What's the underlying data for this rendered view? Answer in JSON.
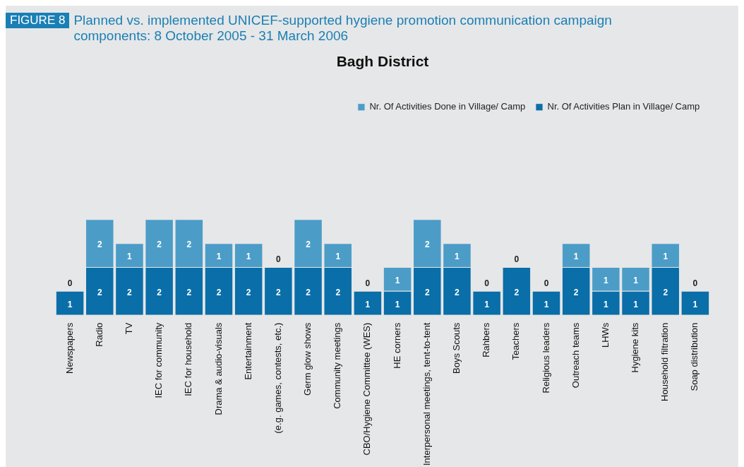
{
  "chart_data": {
    "type": "bar",
    "title": "Bagh District",
    "stacked": true,
    "data_labels": true,
    "legend": "top right",
    "annotations": [
      "FIGURE 8",
      "Planned vs. implemented UNICEF-supported hygiene promotion communication campaign components: 8 October 2005 - 31 March 2006"
    ],
    "categories": [
      "Newspapers",
      "Radio",
      "TV",
      "IEC for community",
      "IEC for household",
      "Drama & audio-visuals",
      "Entertainment",
      "(e.g. games, contests, etc.)",
      "Germ glow shows",
      "Community meetings",
      "CBO/Hygiene Committee (WES)",
      "HE corners",
      "Interpersonal meetings, tent-to-tent",
      "Boys Scouts",
      "Rahbers",
      "Teachers",
      "Religious leaders",
      "Outreach teams",
      "LHWs",
      "Hygiene kits",
      "Household filtration",
      "Soap distribution"
    ],
    "series": [
      {
        "name": "Nr. Of Activities Plan in Village/ Camp",
        "color": "#0a6ea8",
        "values": [
          1,
          2,
          2,
          2,
          2,
          2,
          2,
          2,
          2,
          2,
          1,
          1,
          2,
          2,
          1,
          2,
          1,
          2,
          1,
          1,
          2,
          1
        ]
      },
      {
        "name": "Nr. Of Activities Done in Village/ Camp",
        "color": "#4b9dc7",
        "values": [
          0,
          2,
          1,
          2,
          2,
          1,
          1,
          0,
          2,
          1,
          0,
          1,
          2,
          1,
          0,
          0,
          0,
          1,
          1,
          1,
          1,
          0
        ]
      }
    ]
  }
}
